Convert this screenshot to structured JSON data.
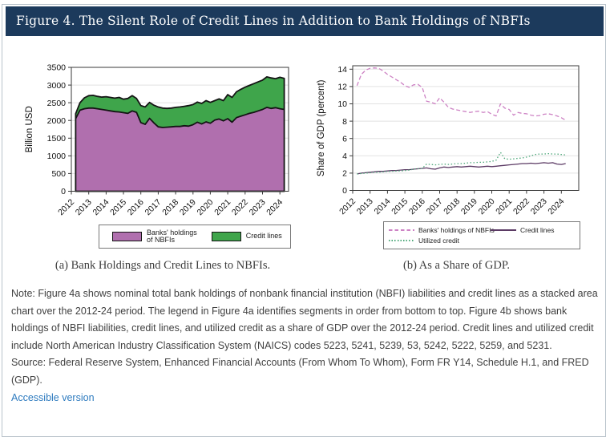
{
  "header": {
    "title": "Figure 4. The Silent Role of Credit Lines in Addition to Bank Holdings of NBFIs"
  },
  "colors": {
    "header_bg": "#1c3a5c",
    "link": "#2e7bbf",
    "banks_fill": "#b06fae",
    "credit_fill": "#3fa54b",
    "area_outline": "#141414"
  },
  "chart_data": [
    {
      "type": "area",
      "stacked": true,
      "title": "Bank Holdings and Credit Lines to NBFIs",
      "xlabel": "",
      "ylabel": "Billion USD",
      "ylim": [
        0,
        3500
      ],
      "yticks": [
        0,
        500,
        1000,
        1500,
        2000,
        2500,
        3000,
        3500
      ],
      "xlim": [
        2012,
        2024.5
      ],
      "xticks": [
        2012,
        2013,
        2014,
        2015,
        2016,
        2017,
        2018,
        2019,
        2020,
        2021,
        2022,
        2023,
        2024
      ],
      "grid": "horizontal",
      "legend_position": "bottom",
      "x": [
        2012.25,
        2012.5,
        2012.75,
        2013,
        2013.25,
        2013.5,
        2013.75,
        2014,
        2014.25,
        2014.5,
        2014.75,
        2015,
        2015.25,
        2015.5,
        2015.75,
        2016,
        2016.25,
        2016.5,
        2016.75,
        2017,
        2017.25,
        2017.5,
        2017.75,
        2018,
        2018.25,
        2018.5,
        2018.75,
        2019,
        2019.25,
        2019.5,
        2019.75,
        2020,
        2020.25,
        2020.5,
        2020.75,
        2021,
        2021.25,
        2021.5,
        2021.75,
        2022,
        2022.25,
        2022.5,
        2022.75,
        2023,
        2023.25,
        2023.5,
        2023.75,
        2024,
        2024.25
      ],
      "series": [
        {
          "name": "Banks' holdings of NBFIs",
          "color": "#b06fae",
          "values": [
            2050,
            2290,
            2330,
            2350,
            2350,
            2330,
            2310,
            2290,
            2270,
            2250,
            2240,
            2220,
            2200,
            2270,
            2230,
            1940,
            1890,
            2060,
            1930,
            1820,
            1800,
            1810,
            1820,
            1830,
            1830,
            1850,
            1840,
            1880,
            1950,
            1900,
            1960,
            1920,
            2010,
            2040,
            1990,
            2050,
            1950,
            2080,
            2120,
            2160,
            2200,
            2230,
            2270,
            2310,
            2370,
            2340,
            2360,
            2330,
            2310
          ]
        },
        {
          "name": "Credit lines",
          "color": "#3fa54b",
          "values": [
            140,
            210,
            310,
            350,
            360,
            350,
            350,
            380,
            380,
            380,
            410,
            380,
            420,
            430,
            390,
            480,
            490,
            450,
            500,
            560,
            550,
            530,
            530,
            540,
            550,
            550,
            580,
            570,
            570,
            580,
            600,
            590,
            550,
            570,
            570,
            680,
            700,
            730,
            760,
            780,
            790,
            810,
            820,
            830,
            860,
            860,
            820,
            890,
            880
          ]
        }
      ]
    },
    {
      "type": "line",
      "title": "As a Share of GDP",
      "xlabel": "",
      "ylabel": "Share of GDP (percent)",
      "ylim": [
        0,
        14.4
      ],
      "yticks": [
        0,
        2,
        4,
        6,
        8,
        10,
        12,
        14
      ],
      "xlim": [
        2012,
        2025
      ],
      "xticks": [
        2012,
        2013,
        2014,
        2015,
        2016,
        2017,
        2018,
        2019,
        2020,
        2021,
        2022,
        2023,
        2024
      ],
      "grid": "horizontal",
      "legend_position": "bottom",
      "x": [
        2012.25,
        2012.5,
        2012.75,
        2013,
        2013.25,
        2013.5,
        2013.75,
        2014,
        2014.25,
        2014.5,
        2014.75,
        2015,
        2015.25,
        2015.5,
        2015.75,
        2016,
        2016.25,
        2016.5,
        2016.75,
        2017,
        2017.25,
        2017.5,
        2017.75,
        2018,
        2018.25,
        2018.5,
        2018.75,
        2019,
        2019.25,
        2019.5,
        2019.75,
        2020,
        2020.25,
        2020.5,
        2020.75,
        2021,
        2021.25,
        2021.5,
        2021.75,
        2022,
        2022.25,
        2022.5,
        2022.75,
        2023,
        2023.25,
        2023.5,
        2023.75,
        2024,
        2024.25
      ],
      "series": [
        {
          "name": "Banks' holdings of NBFIs",
          "style": "dashed",
          "color": "#cd82c4",
          "values": [
            12.1,
            13.4,
            13.9,
            14.1,
            14.15,
            14.1,
            13.8,
            13.4,
            13.1,
            12.8,
            12.5,
            12.1,
            11.9,
            12.2,
            12.25,
            11.9,
            10.3,
            10.2,
            10.0,
            10.7,
            10.2,
            9.6,
            9.4,
            9.3,
            9.2,
            9.1,
            9.0,
            9.1,
            9.15,
            9.0,
            9.1,
            8.8,
            8.6,
            10.0,
            9.5,
            9.35,
            8.7,
            9.0,
            8.9,
            8.85,
            8.7,
            8.6,
            8.65,
            8.8,
            8.85,
            8.75,
            8.6,
            8.4,
            8.1
          ]
        },
        {
          "name": "Credit lines",
          "style": "solid",
          "color": "#5b3a64",
          "values": [
            1.9,
            2.0,
            2.05,
            2.1,
            2.15,
            2.2,
            2.2,
            2.25,
            2.3,
            2.3,
            2.35,
            2.4,
            2.4,
            2.45,
            2.5,
            2.55,
            2.6,
            2.5,
            2.45,
            2.6,
            2.7,
            2.65,
            2.7,
            2.75,
            2.7,
            2.75,
            2.8,
            2.75,
            2.7,
            2.75,
            2.8,
            2.75,
            2.8,
            2.85,
            2.9,
            2.95,
            3.0,
            3.05,
            3.1,
            3.1,
            3.15,
            3.1,
            3.15,
            3.2,
            3.15,
            3.2,
            3.05,
            3.0,
            3.1
          ]
        },
        {
          "name": "Utilized credit",
          "style": "dotted",
          "color": "#4ea87a",
          "values": [
            1.9,
            1.95,
            2.0,
            2.05,
            2.1,
            2.1,
            2.15,
            2.2,
            2.2,
            2.25,
            2.25,
            2.3,
            2.35,
            2.45,
            2.5,
            2.55,
            3.05,
            3.0,
            2.95,
            3.0,
            3.05,
            3.0,
            3.05,
            3.1,
            3.1,
            3.15,
            3.2,
            3.2,
            3.25,
            3.25,
            3.3,
            3.35,
            3.5,
            4.4,
            3.65,
            3.6,
            3.65,
            3.7,
            3.75,
            3.85,
            4.0,
            4.15,
            4.2,
            4.2,
            4.25,
            4.2,
            4.2,
            4.15,
            4.1
          ]
        }
      ]
    }
  ],
  "legend_a": {
    "item1": "Banks' holdings\nof NBFIs"
  },
  "captions": {
    "a": "(a) Bank Holdings and Credit Lines to NBFIs.",
    "b": "(b) As a Share of GDP."
  },
  "note": {
    "note_text": "Note: Figure 4a shows nominal total bank holdings of nonbank financial institution (NBFI) liabilities and credit lines as a stacked area chart over the 2012-24 period. The legend in Figure 4a identifies segments in order from bottom to top. Figure 4b shows bank holdings of NBFI liabilities, credit lines, and utilized credit as a share of GDP over the 2012-24 period. Credit lines and utilized credit include North American Industry Classification System (NAICS) codes 5223, 5241, 5239, 53, 5242, 5222, 5259, and 5231.",
    "source_text": "Source: Federal Reserve System, Enhanced Financial Accounts (From Whom To Whom), Form FR Y14, Schedule H.1, and FRED (GDP).",
    "link_text": "Accessible version"
  }
}
